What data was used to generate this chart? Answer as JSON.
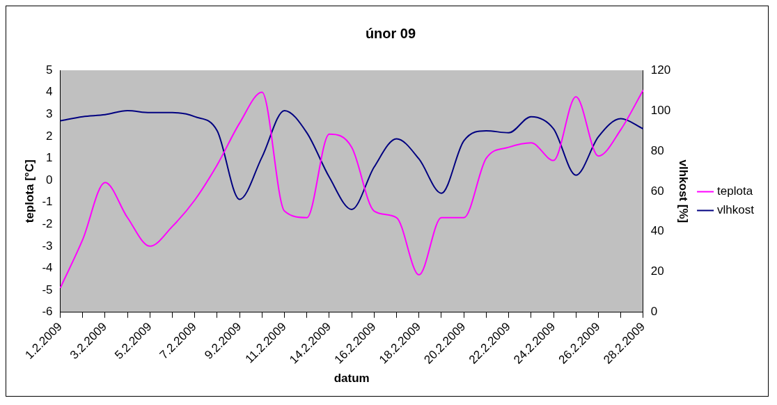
{
  "chart_data": {
    "type": "line",
    "title": "únor 09",
    "xlabel": "datum",
    "ylabel": "teplota [°C]",
    "y2label": "vlhkost [%]",
    "categories": [
      "1.2.2009",
      null,
      "3.2.2009",
      null,
      "5.2.2009",
      null,
      "7.2.2009",
      null,
      "9.2.2009",
      null,
      "11.2.2009",
      null,
      "14.2.2009",
      null,
      "16.2.2009",
      null,
      "18.2.2009",
      null,
      "20.2.2009",
      null,
      "22.2.2009",
      null,
      "24.2.2009",
      null,
      "26.2.2009",
      null,
      "28.2.2009"
    ],
    "series": [
      {
        "name": "teplota",
        "color": "#ff00ff",
        "values": [
          -4.9,
          -2.7,
          -0.1,
          -1.7,
          -3.0,
          -2.1,
          -0.9,
          0.7,
          2.6,
          4.0,
          -1.4,
          -1.7,
          2.1,
          1.5,
          -1.4,
          -1.7,
          -4.3,
          -1.7,
          -1.7,
          1.0,
          1.5,
          1.7,
          0.9,
          3.8,
          1.1,
          2.3,
          4.1
        ]
      },
      {
        "name": "vlhkost",
        "color": "#000080",
        "axis": "y2",
        "values": [
          95,
          97,
          98,
          100,
          99,
          99,
          97,
          90,
          56,
          77,
          100,
          89,
          67,
          51,
          72,
          86,
          76,
          59,
          85,
          90,
          89,
          97,
          91,
          68,
          87,
          96,
          91
        ]
      }
    ],
    "ylim": [
      -6,
      5
    ],
    "yticks": [
      -6,
      -5,
      -4,
      -3,
      -2,
      -1,
      0,
      1,
      2,
      3,
      4,
      5
    ],
    "y2lim": [
      0,
      120
    ],
    "y2ticks": [
      0,
      20,
      40,
      60,
      80,
      100,
      120
    ],
    "grid": false,
    "legend": "right",
    "marker": "none",
    "line_style": "solid"
  }
}
